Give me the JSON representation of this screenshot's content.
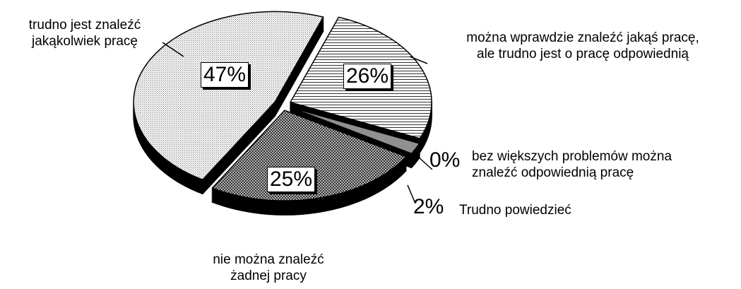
{
  "chart_data": {
    "type": "pie",
    "categories": [
      "można wprawdzie znaleźć jakąś pracę,\nale trudno jest o pracę odpowiednią",
      "bez większych problemów można\nznaleźć odpowiednią pracę",
      "Trudno powiedzieć",
      "nie można znaleźć\nżadnej pracy",
      "trudno jest znaleźć\njakąkolwiek pracę"
    ],
    "values": [
      26,
      0,
      2,
      25,
      47
    ],
    "value_labels": [
      "26%",
      "0%",
      "2%",
      "25%",
      "47%"
    ],
    "colors": [
      "#000000",
      "#000000",
      "#909090",
      "#303030",
      "#707070"
    ]
  }
}
